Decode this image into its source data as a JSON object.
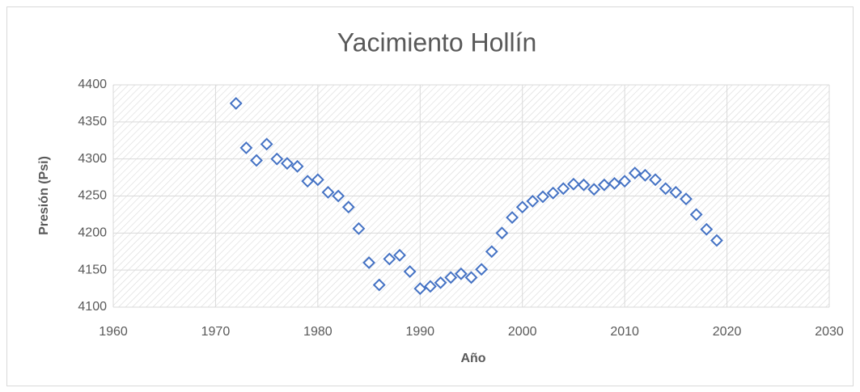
{
  "chart_data": {
    "type": "scatter",
    "title": "Yacimiento Hollín",
    "x_label": "Año",
    "y_label": "Presión (Psi)",
    "series": [
      {
        "color": "#4472c4",
        "x": [
          1972,
          1973,
          1974,
          1975,
          1976,
          1977,
          1978,
          1979,
          1980,
          1981,
          1982,
          1983,
          1984,
          1985,
          1986,
          1987,
          1988,
          1989,
          1990,
          1991,
          1992,
          1993,
          1994,
          1995,
          1996,
          1997,
          1998,
          1999,
          2000,
          2001,
          2002,
          2003,
          2004,
          2005,
          2006,
          2007,
          2008,
          2009,
          2010,
          2011,
          2012,
          2013,
          2014,
          2015,
          2016,
          2017,
          2018,
          2019
        ],
        "values": [
          4375,
          4315,
          4298,
          4320,
          4300,
          4294,
          4290,
          4270,
          4272,
          4255,
          4250,
          4235,
          4206,
          4160,
          4130,
          4165,
          4170,
          4148,
          4125,
          4128,
          4133,
          4140,
          4145,
          4140,
          4151,
          4175,
          4200,
          4221,
          4235,
          4243,
          4249,
          4254,
          4260,
          4266,
          4265,
          4259,
          4265,
          4267,
          4270,
          4281,
          4278,
          4272,
          4260,
          4255,
          4246,
          4225,
          4205,
          4190
        ]
      }
    ],
    "xlim": [
      1960,
      2030
    ],
    "xticks": [
      1960,
      1970,
      1980,
      1990,
      2000,
      2010,
      2020,
      2030
    ],
    "ylim": [
      4100,
      4400
    ],
    "yticks": [
      4100,
      4150,
      4200,
      4250,
      4300,
      4350,
      4400
    ],
    "grid": true
  }
}
